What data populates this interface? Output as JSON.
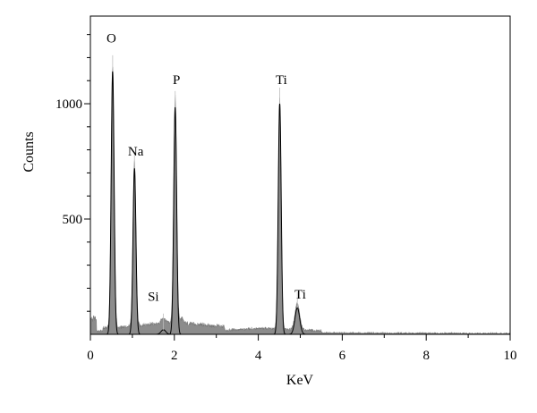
{
  "chart_data": {
    "type": "area",
    "title": "",
    "xlabel": "KeV",
    "ylabel": "Counts",
    "xlim": [
      0,
      10
    ],
    "ylim": [
      0,
      1380
    ],
    "x_ticks": [
      0,
      2,
      4,
      6,
      8,
      10
    ],
    "x_tick_labels": [
      "0",
      "2",
      "4",
      "6",
      "8",
      "10"
    ],
    "y_ticks": [
      500,
      1000
    ],
    "y_tick_labels": [
      "500",
      "1000"
    ],
    "grid": false,
    "legend": "none",
    "fill_color": "#8c8c8c",
    "line_color": "#000000",
    "peaks": [
      {
        "label": "O",
        "energy": 0.53,
        "counts": 1140,
        "label_x": 0.5,
        "label_y": 1265
      },
      {
        "label": "Na",
        "energy": 1.05,
        "counts": 720,
        "label_x": 1.08,
        "label_y": 775
      },
      {
        "label": "Si",
        "energy": 1.74,
        "counts": 20,
        "label_x": 1.5,
        "label_y": 145
      },
      {
        "label": "P",
        "energy": 2.02,
        "counts": 985,
        "label_x": 2.05,
        "label_y": 1085
      },
      {
        "label": "Ti",
        "energy": 4.51,
        "counts": 1000,
        "label_x": 4.55,
        "label_y": 1085
      },
      {
        "label": "Ti",
        "energy": 4.93,
        "counts": 115,
        "label_x": 5.0,
        "label_y": 155
      }
    ]
  }
}
